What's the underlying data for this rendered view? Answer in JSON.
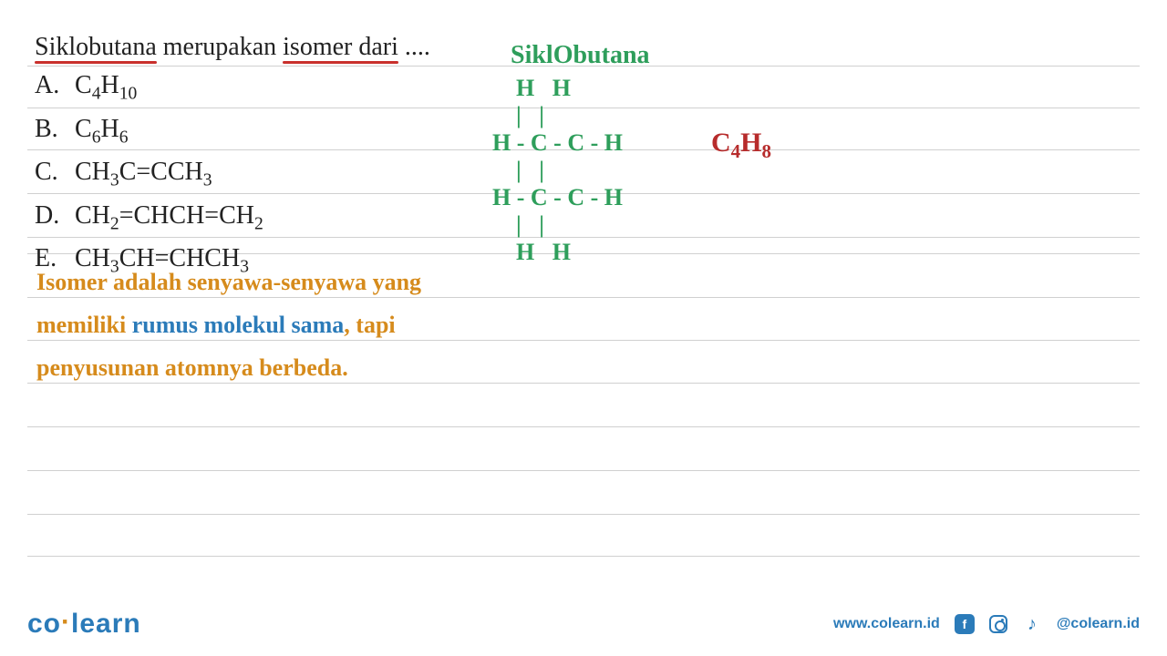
{
  "question": {
    "word1": "Siklobutana",
    "mid": " merupakan ",
    "word2": "isomer dari",
    "trail": " ...."
  },
  "choices": [
    {
      "letter": "A.",
      "formula_html": "C<sub>4</sub>H<sub>10</sub>"
    },
    {
      "letter": "B.",
      "formula_html": "C<sub>6</sub>H<sub>6</sub>"
    },
    {
      "letter": "C.",
      "formula_html": "CH<sub>3</sub>C=CCH<sub>3</sub>"
    },
    {
      "letter": "D.",
      "formula_html": "CH<sub>2</sub>=CHCH=CH<sub>2</sub>"
    },
    {
      "letter": "E.",
      "formula_html": "CH<sub>3</sub>CH=CHCH<sub>3</sub>"
    }
  ],
  "molecule_title": "SiklObutana",
  "molecule_lines": [
    "    H   H",
    "    |   |",
    "H - C - C - H",
    "    |   |",
    "H - C - C - H",
    "    |   |",
    "    H   H"
  ],
  "formula_base": "C",
  "formula_sub1": "4",
  "formula_mid": "H",
  "formula_sub2": "8",
  "explanation": {
    "p1a": "Isomer adalah senyawa-senyawa yang",
    "p2a": "memiliki ",
    "p2b": "rumus molekul sama",
    "p2c": ", tapi",
    "p3a": "penyusunan atomnya berbeda."
  },
  "hlines_y": [
    42,
    88,
    134,
    182,
    230,
    248,
    296,
    343,
    390,
    438,
    486,
    534,
    580
  ],
  "colors": {
    "green": "#2e9e5b",
    "red": "#b72c2c",
    "orange": "#d68b1c",
    "blue": "#2b7bb9",
    "underline": "#c9302c",
    "line": "#d0d0d0"
  },
  "footer": {
    "logo_co": "co",
    "logo_learn": "learn",
    "url": "www.colearn.id",
    "handle": "@colearn.id"
  }
}
